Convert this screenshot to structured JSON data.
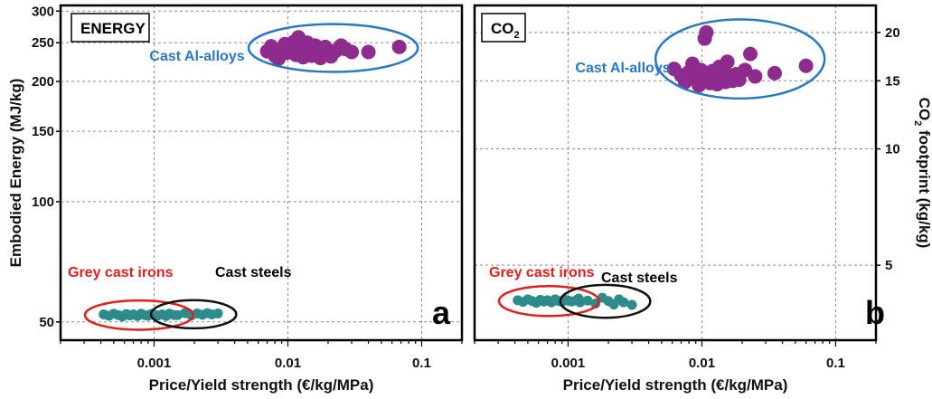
{
  "chart_data": [
    {
      "type": "scatter",
      "panel_title": "ENERGY",
      "panel_letter": "a",
      "xlabel": "Price/Yield strength (€/kg/MPa)",
      "ylabel": "Embodied Energy (MJ/kg)",
      "xscale": "log",
      "yscale": "log",
      "xlim": [
        0.0002,
        0.2
      ],
      "ylim": [
        45,
        310
      ],
      "xticks": [
        {
          "value": 0.001,
          "label": "0.001"
        },
        {
          "value": 0.01,
          "label": "0.01"
        },
        {
          "value": 0.1,
          "label": "0.1"
        }
      ],
      "yticks": [
        {
          "value": 50,
          "label": "50"
        },
        {
          "value": 100,
          "label": "100"
        },
        {
          "value": 150,
          "label": "150"
        },
        {
          "value": 200,
          "label": "200"
        },
        {
          "value": 250,
          "label": "250"
        },
        {
          "value": 300,
          "label": "300"
        }
      ],
      "grid": true,
      "groups": [
        {
          "name": "Cast Al-alloys",
          "label": "Cast Al-alloys",
          "color": "#8e2b8e",
          "ring_color": "#2a77c2",
          "points": [
            [
              0.007,
              238
            ],
            [
              0.0075,
              245
            ],
            [
              0.008,
              232
            ],
            [
              0.0085,
              228
            ],
            [
              0.009,
              240
            ],
            [
              0.0095,
              248
            ],
            [
              0.0098,
              236
            ],
            [
              0.0103,
              243
            ],
            [
              0.011,
              251
            ],
            [
              0.0115,
              233
            ],
            [
              0.012,
              258
            ],
            [
              0.0125,
              245
            ],
            [
              0.013,
              230
            ],
            [
              0.0135,
              239
            ],
            [
              0.014,
              250
            ],
            [
              0.0145,
              236
            ],
            [
              0.015,
              232
            ],
            [
              0.016,
              246
            ],
            [
              0.017,
              240
            ],
            [
              0.0175,
              229
            ],
            [
              0.018,
              235
            ],
            [
              0.019,
              244
            ],
            [
              0.02,
              238
            ],
            [
              0.021,
              231
            ],
            [
              0.023,
              239
            ],
            [
              0.025,
              246
            ],
            [
              0.027,
              241
            ],
            [
              0.03,
              237
            ],
            [
              0.04,
              237
            ],
            [
              0.068,
              244
            ]
          ]
        },
        {
          "name": "Grey cast irons",
          "label": "Grey cast irons",
          "color": "#2e8b8b",
          "ring_color": "#e02020",
          "points": [
            [
              0.00042,
              52.2
            ],
            [
              0.00046,
              51.8
            ],
            [
              0.0005,
              52.4
            ],
            [
              0.00054,
              52.0
            ],
            [
              0.00058,
              51.6
            ],
            [
              0.00062,
              52.3
            ],
            [
              0.00066,
              51.9
            ],
            [
              0.0007,
              52.2
            ],
            [
              0.00075,
              51.7
            ],
            [
              0.0008,
              52.4
            ],
            [
              0.00085,
              52.0
            ],
            [
              0.0009,
              51.8
            ],
            [
              0.00095,
              52.3
            ],
            [
              0.001,
              52.1
            ],
            [
              0.00107,
              51.9
            ],
            [
              0.00115,
              52.2
            ],
            [
              0.00123,
              51.7
            ],
            [
              0.00132,
              52.3
            ],
            [
              0.00142,
              52.0
            ]
          ]
        },
        {
          "name": "Cast steels",
          "label": "Cast steels",
          "color": "#2e8b8b",
          "ring_color": "#111111",
          "points": [
            [
              0.0013,
              52.4
            ],
            [
              0.0015,
              52.0
            ],
            [
              0.0017,
              52.6
            ],
            [
              0.0019,
              51.9
            ],
            [
              0.0021,
              52.5
            ],
            [
              0.0023,
              52.1
            ],
            [
              0.0025,
              52.6
            ],
            [
              0.0027,
              52.2
            ],
            [
              0.003,
              52.5
            ]
          ]
        }
      ]
    },
    {
      "type": "scatter",
      "panel_title": "CO",
      "panel_title_sub": "2",
      "panel_letter": "b",
      "xlabel": "Price/Yield strength (€/kg/MPa)",
      "ylabel": "CO",
      "ylabel_sub": "2",
      "ylabel_rest": " footprint (kg/kg)",
      "xscale": "log",
      "yscale": "log",
      "xlim": [
        0.0002,
        0.2
      ],
      "ylim": [
        3.2,
        23.5
      ],
      "xticks": [
        {
          "value": 0.001,
          "label": "0.001"
        },
        {
          "value": 0.01,
          "label": "0.01"
        },
        {
          "value": 0.1,
          "label": "0.1"
        }
      ],
      "yticks": [
        {
          "value": 5,
          "label": "5"
        },
        {
          "value": 10,
          "label": "10"
        },
        {
          "value": 15,
          "label": "15"
        },
        {
          "value": 20,
          "label": "20"
        }
      ],
      "grid": true,
      "groups": [
        {
          "name": "Cast Al-alloys",
          "label": "Cast Al-alloys",
          "color": "#8e2b8e",
          "ring_color": "#2a77c2",
          "points": [
            [
              0.0062,
              16.1
            ],
            [
              0.007,
              15.5
            ],
            [
              0.0075,
              14.9
            ],
            [
              0.008,
              15.8
            ],
            [
              0.0085,
              16.6
            ],
            [
              0.009,
              15.2
            ],
            [
              0.0095,
              14.6
            ],
            [
              0.0098,
              16.0
            ],
            [
              0.0105,
              19.3
            ],
            [
              0.0108,
              20.0
            ],
            [
              0.011,
              15.4
            ],
            [
              0.0115,
              14.8
            ],
            [
              0.012,
              15.9
            ],
            [
              0.0125,
              15.1
            ],
            [
              0.013,
              14.7
            ],
            [
              0.0135,
              16.3
            ],
            [
              0.014,
              15.3
            ],
            [
              0.015,
              14.9
            ],
            [
              0.0155,
              16.8
            ],
            [
              0.016,
              15.5
            ],
            [
              0.017,
              15.0
            ],
            [
              0.018,
              15.6
            ],
            [
              0.019,
              15.1
            ],
            [
              0.021,
              16.0
            ],
            [
              0.023,
              17.6
            ],
            [
              0.025,
              15.4
            ],
            [
              0.035,
              15.7
            ],
            [
              0.06,
              16.4
            ]
          ]
        },
        {
          "name": "Grey cast irons",
          "label": "Grey cast irons",
          "color": "#2e8b8b",
          "ring_color": "#e02020",
          "points": [
            [
              0.00042,
              4.06
            ],
            [
              0.00046,
              4.02
            ],
            [
              0.0005,
              4.08
            ],
            [
              0.00054,
              4.04
            ],
            [
              0.00058,
              4.0
            ],
            [
              0.00062,
              4.07
            ],
            [
              0.00066,
              4.03
            ],
            [
              0.0007,
              4.06
            ],
            [
              0.00075,
              4.01
            ],
            [
              0.0008,
              4.08
            ],
            [
              0.00085,
              4.04
            ],
            [
              0.0009,
              4.02
            ],
            [
              0.00095,
              4.07
            ],
            [
              0.001,
              4.05
            ],
            [
              0.00107,
              4.03
            ],
            [
              0.00115,
              4.06
            ],
            [
              0.00123,
              4.01
            ]
          ]
        },
        {
          "name": "Cast steels",
          "label": "Cast steels",
          "color": "#2e8b8b",
          "ring_color": "#111111",
          "points": [
            [
              0.0012,
              4.1
            ],
            [
              0.0014,
              4.05
            ],
            [
              0.0016,
              3.98
            ],
            [
              0.0018,
              4.12
            ],
            [
              0.002,
              4.04
            ],
            [
              0.0022,
              3.96
            ],
            [
              0.0024,
              4.08
            ],
            [
              0.0026,
              4.01
            ],
            [
              0.003,
              3.95
            ]
          ]
        }
      ]
    }
  ]
}
